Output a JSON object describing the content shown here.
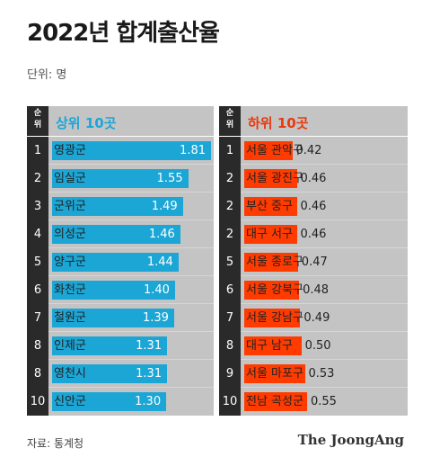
{
  "title": "2022년 합계출산율",
  "unit": "단위: 명",
  "source": "자료: 통계청",
  "brand": "The JoongAng",
  "rank_header": [
    "순",
    "위"
  ],
  "chart_data": [
    {
      "type": "bar",
      "title": "상위 10곳",
      "color": "#1ba6d6",
      "ranks": [
        "1",
        "2",
        "3",
        "4",
        "5",
        "6",
        "7",
        "8",
        "8",
        "10"
      ],
      "categories": [
        "영광군",
        "임실군",
        "군위군",
        "의성군",
        "양구군",
        "화천군",
        "철원군",
        "인제군",
        "영천시",
        "신안군"
      ],
      "values": [
        1.81,
        1.55,
        1.49,
        1.46,
        1.44,
        1.4,
        1.39,
        1.31,
        1.31,
        1.3
      ],
      "labels": [
        "1.81",
        "1.55",
        "1.49",
        "1.46",
        "1.44",
        "1.40",
        "1.39",
        "1.31",
        "1.31",
        "1.30"
      ]
    },
    {
      "type": "bar",
      "title": "하위 10곳",
      "color": "#ff3b00",
      "ranks": [
        "1",
        "2",
        "2",
        "2",
        "5",
        "6",
        "7",
        "8",
        "9",
        "10"
      ],
      "categories": [
        "서울 관악구",
        "서울 광진구",
        "부산 중구",
        "대구 서구",
        "서울 종로구",
        "서울 강북구",
        "서울 강남구",
        "대구 남구",
        "서울 마포구",
        "전남 곡성군"
      ],
      "values": [
        0.42,
        0.46,
        0.46,
        0.46,
        0.47,
        0.48,
        0.49,
        0.5,
        0.53,
        0.55
      ],
      "labels": [
        "0.42",
        "0.46",
        "0.46",
        "0.46",
        "0.47",
        "0.48",
        "0.49",
        "0.50",
        "0.53",
        "0.55"
      ]
    }
  ]
}
